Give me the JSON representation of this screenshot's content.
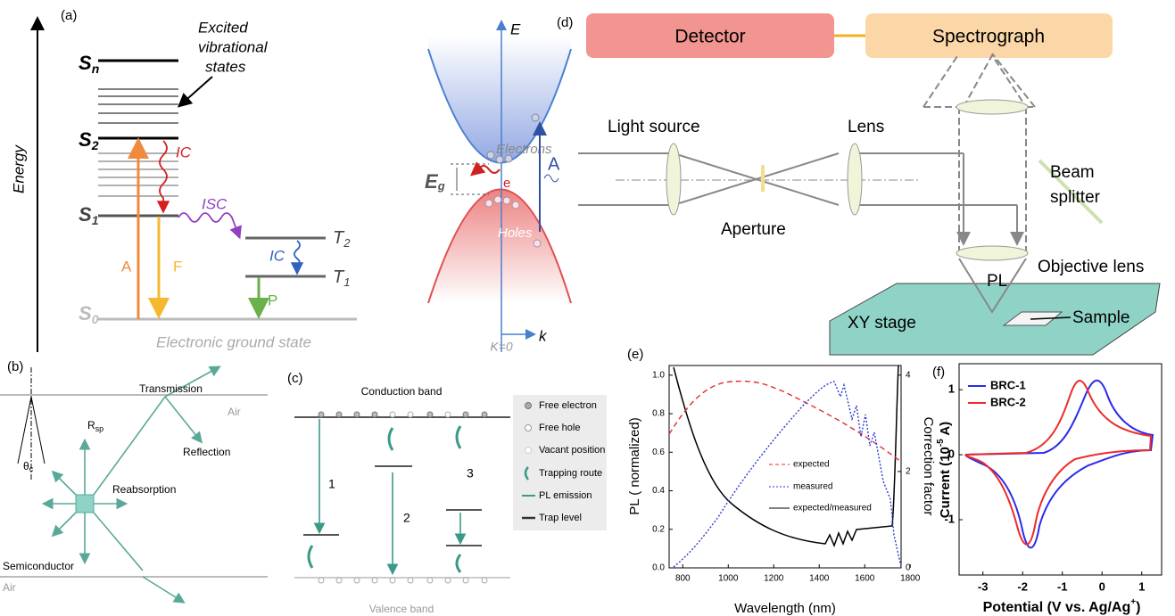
{
  "panel_a": {
    "label": "(a)",
    "axis": "Energy",
    "levels": {
      "sn": {
        "main": "S",
        "sub": "n"
      },
      "s2": {
        "main": "S",
        "sub": "2"
      },
      "s1": {
        "main": "S",
        "sub": "1"
      },
      "s0": {
        "main": "S",
        "sub": "0"
      },
      "t2": {
        "main": "T",
        "sub": "2"
      },
      "t1": {
        "main": "T",
        "sub": "1"
      }
    },
    "excited": [
      "Excited",
      "vibrational",
      "states"
    ],
    "arrows": {
      "a": "A",
      "f": "F",
      "ic1": "IC",
      "isc": "ISC",
      "ic2": "IC",
      "p": "P"
    },
    "ground": "Electronic ground state"
  },
  "panel_band": {
    "e_axis": "E",
    "k_axis": "k",
    "k0": "K=0",
    "electrons": "Electrons",
    "holes": "Holes",
    "eg": {
      "main": "E",
      "sub": "g"
    },
    "e": "e",
    "a": "A"
  },
  "panel_b": {
    "label": "(b)",
    "transmission": "Transmission",
    "air_top": "Air",
    "rsp": {
      "main": "R",
      "sub": "sp"
    },
    "reflection": "Reflection",
    "reabsorption": "Reabsorption",
    "semiconductor": "Semiconductor",
    "air_bottom": "Air",
    "theta": {
      "main": "θ",
      "sub": "c"
    }
  },
  "panel_c": {
    "label": "(c)",
    "conduction": "Conduction band",
    "valence": "Valence band",
    "routes": [
      "1",
      "2",
      "3"
    ],
    "legend": [
      "Free electron",
      "Free hole",
      "Vacant position",
      "Trapping route",
      "PL emission",
      "Trap level"
    ]
  },
  "panel_d": {
    "label": "(d)",
    "detector": "Detector",
    "spectrograph": "Spectrograph",
    "light_source": "Light source",
    "lens": "Lens",
    "aperture": "Aperture",
    "beam_splitter": [
      "Beam",
      "splitter"
    ],
    "objective": "Objective lens",
    "pl": "PL",
    "stage": "XY stage",
    "sample": "Sample"
  },
  "panel_e": {
    "label": "(e)",
    "ylabel": "PL ( normalized)",
    "y2label": "Correction factor",
    "xlabel": "Wavelength (nm)",
    "xlim": [
      740,
      1760
    ],
    "xticks": [
      800,
      1000,
      1200,
      1400,
      1600,
      1800
    ],
    "ylim": [
      0,
      1.05
    ],
    "yticks": [
      {
        "value": 0,
        "label": "0.0"
      },
      {
        "value": 0.2,
        "label": "0.2"
      },
      {
        "value": 0.4,
        "label": "0.4"
      },
      {
        "value": 0.6,
        "label": "0.6"
      },
      {
        "value": 0.8,
        "label": "0.8"
      },
      {
        "value": 1,
        "label": "1.0"
      }
    ],
    "y2lim": [
      0,
      4.2
    ],
    "y2ticks": [
      0,
      2,
      4
    ],
    "legend": [
      "expected",
      "measured",
      "expected/measured"
    ]
  },
  "panel_f": {
    "label": "(f)",
    "ylabel": {
      "main": "Current (10",
      "sup": "-5",
      "end": " A)"
    },
    "xlabel": {
      "main": "Potential (V vs. Ag/Ag",
      "sup": "+",
      "end": ")"
    },
    "xlim": [
      -3.6,
      1.5
    ],
    "xticks": [
      -3,
      -2,
      -1,
      0,
      1
    ],
    "ylim": [
      -1.85,
      1.4
    ],
    "yticks": [
      1,
      0,
      -1
    ],
    "legend": [
      "BRC-1",
      "BRC-2"
    ]
  }
}
